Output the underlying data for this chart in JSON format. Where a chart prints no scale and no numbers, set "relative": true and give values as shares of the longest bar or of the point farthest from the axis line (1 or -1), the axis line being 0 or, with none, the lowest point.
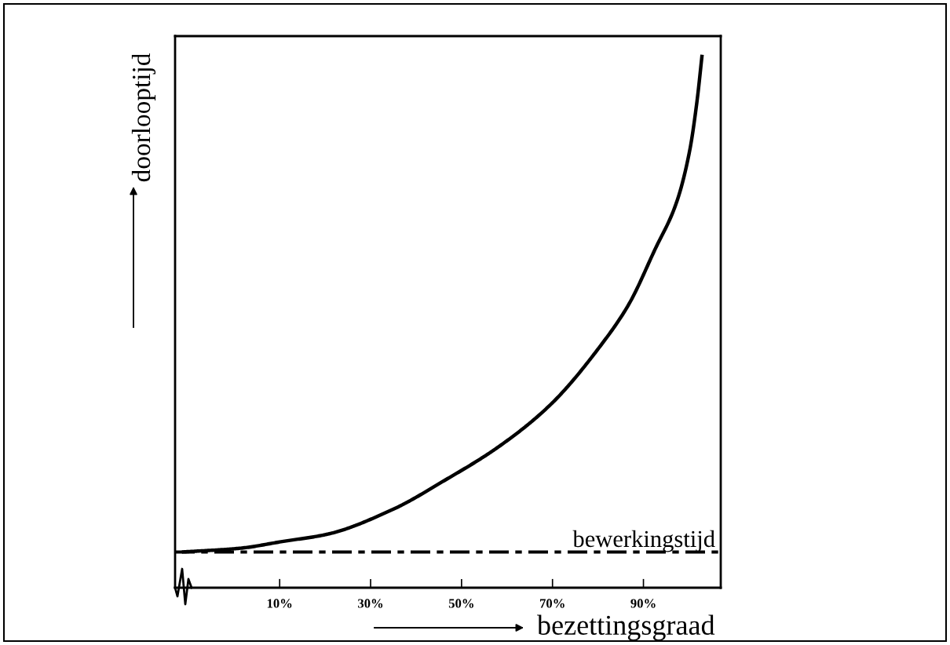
{
  "chart_data": {
    "type": "line",
    "xlabel": "bezettingsgraad",
    "ylabel": "doorlooptijd",
    "relative": true,
    "tick_labels": "x",
    "grid": false,
    "legend": false,
    "marker": "none",
    "line_style": "solid",
    "xlim": [
      -13,
      107
    ],
    "xticks": [
      {
        "value": 10,
        "label": "10%"
      },
      {
        "value": 30,
        "label": "30%"
      },
      {
        "value": 50,
        "label": "50%"
      },
      {
        "value": 70,
        "label": "70%"
      },
      {
        "value": 90,
        "label": "90%"
      }
    ],
    "x": [
      -11.5,
      1.2,
      10.8,
      20.3,
      34.9,
      46.4,
      57.9,
      69.5,
      81.0,
      86.8,
      92.5,
      97.2,
      100.1,
      101.8,
      102.9
    ],
    "series": [
      {
        "color": "#000000",
        "values": [
          0.067,
          0.074,
          0.087,
          0.1,
          0.147,
          0.202,
          0.263,
          0.343,
          0.459,
          0.532,
          0.634,
          0.721,
          0.817,
          0.914,
          1.0
        ]
      }
    ],
    "ref_lines": [
      {
        "axis": "y",
        "value": 0.067,
        "label": "bewerkingstijd",
        "color": "#000000",
        "line_style": "dashdot"
      }
    ]
  }
}
